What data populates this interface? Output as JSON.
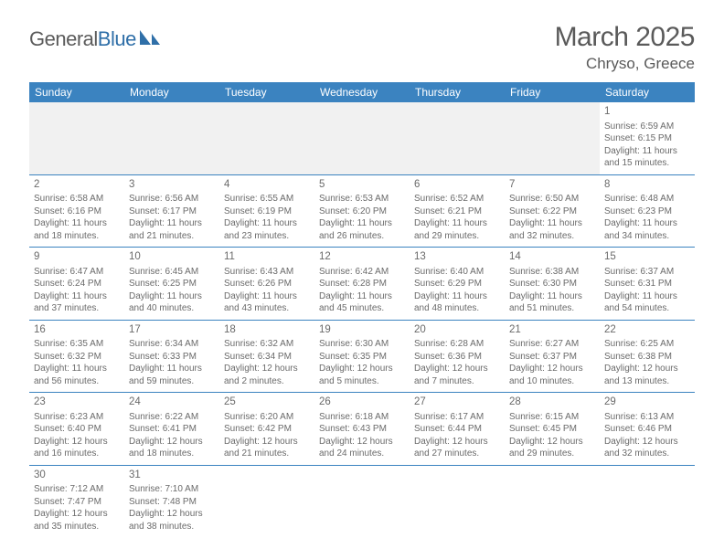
{
  "logo": {
    "text1": "General",
    "text2": "Blue"
  },
  "title": "March 2025",
  "location": "Chryso, Greece",
  "colors": {
    "header_bg": "#3b83c0",
    "header_text": "#ffffff",
    "border": "#3b83c0",
    "text": "#6a6a6a",
    "empty_bg": "#f1f1f1",
    "logo_gray": "#5b5b5b",
    "logo_blue": "#2f6fa8"
  },
  "typography": {
    "title_fontsize": 30,
    "location_fontsize": 17,
    "dayheader_fontsize": 12,
    "cell_fontsize": 10,
    "daynum_fontsize": 11.5
  },
  "day_headers": [
    "Sunday",
    "Monday",
    "Tuesday",
    "Wednesday",
    "Thursday",
    "Friday",
    "Saturday"
  ],
  "weeks": [
    [
      null,
      null,
      null,
      null,
      null,
      null,
      {
        "n": "1",
        "sunrise": "6:59 AM",
        "sunset": "6:15 PM",
        "daylight": "11 hours and 15 minutes."
      }
    ],
    [
      {
        "n": "2",
        "sunrise": "6:58 AM",
        "sunset": "6:16 PM",
        "daylight": "11 hours and 18 minutes."
      },
      {
        "n": "3",
        "sunrise": "6:56 AM",
        "sunset": "6:17 PM",
        "daylight": "11 hours and 21 minutes."
      },
      {
        "n": "4",
        "sunrise": "6:55 AM",
        "sunset": "6:19 PM",
        "daylight": "11 hours and 23 minutes."
      },
      {
        "n": "5",
        "sunrise": "6:53 AM",
        "sunset": "6:20 PM",
        "daylight": "11 hours and 26 minutes."
      },
      {
        "n": "6",
        "sunrise": "6:52 AM",
        "sunset": "6:21 PM",
        "daylight": "11 hours and 29 minutes."
      },
      {
        "n": "7",
        "sunrise": "6:50 AM",
        "sunset": "6:22 PM",
        "daylight": "11 hours and 32 minutes."
      },
      {
        "n": "8",
        "sunrise": "6:48 AM",
        "sunset": "6:23 PM",
        "daylight": "11 hours and 34 minutes."
      }
    ],
    [
      {
        "n": "9",
        "sunrise": "6:47 AM",
        "sunset": "6:24 PM",
        "daylight": "11 hours and 37 minutes."
      },
      {
        "n": "10",
        "sunrise": "6:45 AM",
        "sunset": "6:25 PM",
        "daylight": "11 hours and 40 minutes."
      },
      {
        "n": "11",
        "sunrise": "6:43 AM",
        "sunset": "6:26 PM",
        "daylight": "11 hours and 43 minutes."
      },
      {
        "n": "12",
        "sunrise": "6:42 AM",
        "sunset": "6:28 PM",
        "daylight": "11 hours and 45 minutes."
      },
      {
        "n": "13",
        "sunrise": "6:40 AM",
        "sunset": "6:29 PM",
        "daylight": "11 hours and 48 minutes."
      },
      {
        "n": "14",
        "sunrise": "6:38 AM",
        "sunset": "6:30 PM",
        "daylight": "11 hours and 51 minutes."
      },
      {
        "n": "15",
        "sunrise": "6:37 AM",
        "sunset": "6:31 PM",
        "daylight": "11 hours and 54 minutes."
      }
    ],
    [
      {
        "n": "16",
        "sunrise": "6:35 AM",
        "sunset": "6:32 PM",
        "daylight": "11 hours and 56 minutes."
      },
      {
        "n": "17",
        "sunrise": "6:34 AM",
        "sunset": "6:33 PM",
        "daylight": "11 hours and 59 minutes."
      },
      {
        "n": "18",
        "sunrise": "6:32 AM",
        "sunset": "6:34 PM",
        "daylight": "12 hours and 2 minutes."
      },
      {
        "n": "19",
        "sunrise": "6:30 AM",
        "sunset": "6:35 PM",
        "daylight": "12 hours and 5 minutes."
      },
      {
        "n": "20",
        "sunrise": "6:28 AM",
        "sunset": "6:36 PM",
        "daylight": "12 hours and 7 minutes."
      },
      {
        "n": "21",
        "sunrise": "6:27 AM",
        "sunset": "6:37 PM",
        "daylight": "12 hours and 10 minutes."
      },
      {
        "n": "22",
        "sunrise": "6:25 AM",
        "sunset": "6:38 PM",
        "daylight": "12 hours and 13 minutes."
      }
    ],
    [
      {
        "n": "23",
        "sunrise": "6:23 AM",
        "sunset": "6:40 PM",
        "daylight": "12 hours and 16 minutes."
      },
      {
        "n": "24",
        "sunrise": "6:22 AM",
        "sunset": "6:41 PM",
        "daylight": "12 hours and 18 minutes."
      },
      {
        "n": "25",
        "sunrise": "6:20 AM",
        "sunset": "6:42 PM",
        "daylight": "12 hours and 21 minutes."
      },
      {
        "n": "26",
        "sunrise": "6:18 AM",
        "sunset": "6:43 PM",
        "daylight": "12 hours and 24 minutes."
      },
      {
        "n": "27",
        "sunrise": "6:17 AM",
        "sunset": "6:44 PM",
        "daylight": "12 hours and 27 minutes."
      },
      {
        "n": "28",
        "sunrise": "6:15 AM",
        "sunset": "6:45 PM",
        "daylight": "12 hours and 29 minutes."
      },
      {
        "n": "29",
        "sunrise": "6:13 AM",
        "sunset": "6:46 PM",
        "daylight": "12 hours and 32 minutes."
      }
    ],
    [
      {
        "n": "30",
        "sunrise": "7:12 AM",
        "sunset": "7:47 PM",
        "daylight": "12 hours and 35 minutes."
      },
      {
        "n": "31",
        "sunrise": "7:10 AM",
        "sunset": "7:48 PM",
        "daylight": "12 hours and 38 minutes."
      },
      null,
      null,
      null,
      null,
      null
    ]
  ],
  "labels": {
    "sunrise": "Sunrise: ",
    "sunset": "Sunset: ",
    "daylight": "Daylight: "
  }
}
